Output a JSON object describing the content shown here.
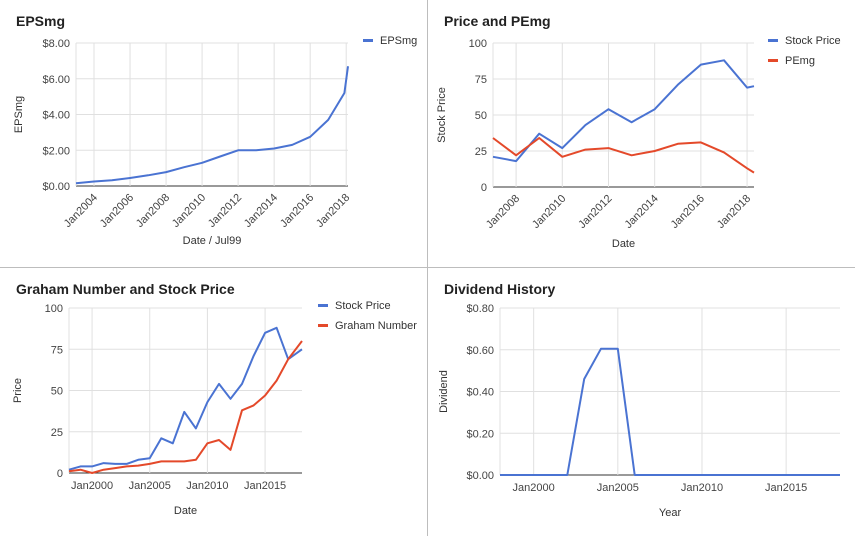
{
  "chart_data": [
    {
      "id": "eps",
      "type": "line",
      "title": "EPSmg",
      "xlabel": "Date / Jul99",
      "ylabel": "EPSmg",
      "x_ticks": [
        "Jan2004",
        "Jan2006",
        "Jan2008",
        "Jan2010",
        "Jan2012",
        "Jan2014",
        "Jan2016",
        "Jan2018"
      ],
      "y_ticks": [
        "$0.00",
        "$2.00",
        "$4.00",
        "$6.00",
        "$8.00"
      ],
      "xlim": [
        2003,
        2018.1
      ],
      "ylim": [
        0,
        8
      ],
      "legend_position": "top-right",
      "grid": true,
      "series": [
        {
          "name": "EPSmg",
          "color": "#4a73d2",
          "x": [
            2003,
            2004,
            2005,
            2006,
            2007,
            2008,
            2009,
            2010,
            2011,
            2012,
            2013,
            2014,
            2015,
            2016,
            2017,
            2017.9,
            2018.1
          ],
          "values": [
            0.15,
            0.25,
            0.32,
            0.45,
            0.6,
            0.78,
            1.05,
            1.3,
            1.65,
            2.0,
            2.0,
            2.1,
            2.3,
            2.75,
            3.7,
            5.2,
            6.7
          ]
        }
      ]
    },
    {
      "id": "price_pe",
      "type": "line",
      "title": "Price and PEmg",
      "xlabel": "Date",
      "ylabel": "Stock Price",
      "x_ticks": [
        "Jan2008",
        "Jan2010",
        "Jan2012",
        "Jan2014",
        "Jan2016",
        "Jan2018"
      ],
      "y_ticks": [
        "0",
        "25",
        "50",
        "75",
        "100"
      ],
      "xlim": [
        2007,
        2018.3
      ],
      "ylim": [
        0,
        100
      ],
      "legend_position": "top-right",
      "grid": true,
      "series": [
        {
          "name": "Stock Price",
          "color": "#4a73d2",
          "x": [
            2007,
            2008,
            2009,
            2010,
            2011,
            2012,
            2013,
            2014,
            2015,
            2016,
            2017,
            2018,
            2018.3
          ],
          "values": [
            21,
            18,
            37,
            27,
            43,
            54,
            45,
            54,
            71,
            85,
            88,
            69,
            70
          ]
        },
        {
          "name": "PEmg",
          "color": "#e4492a",
          "x": [
            2007,
            2008,
            2009,
            2010,
            2011,
            2012,
            2013,
            2014,
            2015,
            2016,
            2017,
            2018,
            2018.3
          ],
          "values": [
            34,
            22,
            34,
            21,
            26,
            27,
            22,
            25,
            30,
            31,
            24,
            13,
            10
          ]
        }
      ]
    },
    {
      "id": "graham",
      "type": "line",
      "title": "Graham Number and Stock Price",
      "xlabel": "Date",
      "ylabel": "Price",
      "x_ticks": [
        "Jan2000",
        "Jan2005",
        "Jan2010",
        "Jan2015"
      ],
      "x_tick_values": [
        2000,
        2005,
        2010,
        2015
      ],
      "y_ticks": [
        "0",
        "25",
        "50",
        "75",
        "100"
      ],
      "xlim": [
        1998,
        2018.2
      ],
      "ylim": [
        0,
        100
      ],
      "legend_position": "top-right",
      "grid": true,
      "series": [
        {
          "name": "Stock Price",
          "color": "#4a73d2",
          "x": [
            1998,
            1999,
            2000,
            2001,
            2002,
            2003,
            2004,
            2005,
            2006,
            2007,
            2008,
            2009,
            2010,
            2011,
            2012,
            2013,
            2014,
            2015,
            2016,
            2017,
            2018.2
          ],
          "values": [
            2,
            4,
            4,
            6,
            5.5,
            5.5,
            8,
            9,
            21,
            18,
            37,
            27,
            43,
            54,
            45,
            54,
            71,
            85,
            88,
            69,
            75
          ]
        },
        {
          "name": "Graham Number",
          "color": "#e4492a",
          "x": [
            1998,
            1999,
            2000,
            2001,
            2002,
            2003,
            2004,
            2005,
            2006,
            2007,
            2008,
            2009,
            2010,
            2011,
            2012,
            2013,
            2014,
            2015,
            2016,
            2017,
            2018.2
          ],
          "values": [
            1,
            2,
            0,
            2,
            3,
            4,
            4.5,
            5.5,
            7,
            7,
            7,
            8,
            18,
            20,
            14,
            38,
            41,
            47,
            56,
            69,
            80
          ]
        }
      ]
    },
    {
      "id": "dividend",
      "type": "line",
      "title": "Dividend History",
      "xlabel": "Year",
      "ylabel": "Dividend",
      "x_ticks": [
        "Jan2000",
        "Jan2005",
        "Jan2010",
        "Jan2015"
      ],
      "x_tick_values": [
        2000,
        2005,
        2010,
        2015
      ],
      "y_ticks": [
        "$0.00",
        "$0.20",
        "$0.40",
        "$0.60",
        "$0.80"
      ],
      "xlim": [
        1998,
        2018.2
      ],
      "ylim": [
        0,
        0.8
      ],
      "grid": true,
      "series": [
        {
          "name": "",
          "color": "#4a73d2",
          "x": [
            1998,
            2002,
            2003,
            2004,
            2005,
            2006,
            2018.2
          ],
          "values": [
            0,
            0,
            0.46,
            0.605,
            0.605,
            0,
            0
          ]
        }
      ]
    }
  ]
}
